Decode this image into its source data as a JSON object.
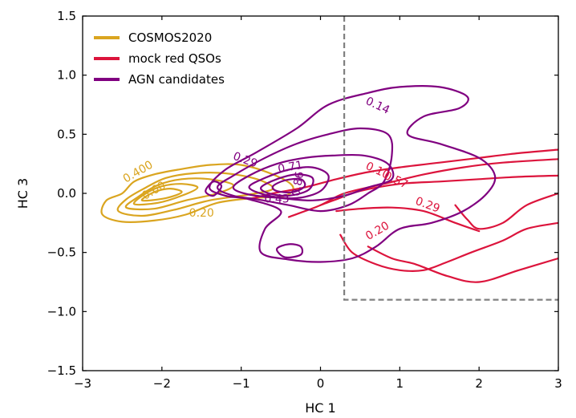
{
  "chart_data": {
    "type": "contour",
    "xlabel": "HC 1",
    "ylabel": "HC 3",
    "xlim": [
      -3,
      3
    ],
    "ylim": [
      -1.5,
      1.5
    ],
    "xticks": [
      -3,
      -2,
      -1,
      0,
      1,
      2,
      3
    ],
    "yticks": [
      -1.5,
      -1.0,
      -0.5,
      0.0,
      0.5,
      1.0,
      1.5
    ],
    "xtick_labels": [
      "−3",
      "−2",
      "−1",
      "0",
      "1",
      "2",
      "3"
    ],
    "ytick_labels": [
      "−1.5",
      "−1.0",
      "−0.5",
      "0.0",
      "0.5",
      "1.0",
      "1.5"
    ],
    "grid": false,
    "legend_position": "top-left",
    "selection_box": {
      "color": "#808080",
      "style": "dashed",
      "x_min": 0.3,
      "y_max": -0.9,
      "points": [
        [
          0.3,
          1.5
        ],
        [
          0.3,
          -0.9
        ],
        [
          3.0,
          -0.9
        ]
      ]
    },
    "series": [
      {
        "name": "COSMOS2020",
        "color": "#DAA520",
        "contours": [
          {
            "points": [
              [
                -2.75,
                -0.18
              ],
              [
                -2.7,
                -0.06
              ],
              [
                -2.5,
                0.0
              ],
              [
                -2.35,
                0.1
              ],
              [
                -2.1,
                0.16
              ],
              [
                -1.8,
                0.2
              ],
              [
                -1.4,
                0.24
              ],
              [
                -1.0,
                0.24
              ],
              [
                -0.6,
                0.16
              ],
              [
                -0.35,
                0.06
              ],
              [
                -0.45,
                -0.02
              ],
              [
                -0.85,
                -0.04
              ],
              [
                -1.3,
                -0.08
              ],
              [
                -1.7,
                -0.18
              ],
              [
                -2.1,
                -0.23
              ],
              [
                -2.5,
                -0.24
              ],
              [
                -2.75,
                -0.18
              ]
            ]
          },
          {
            "points": [
              [
                -2.55,
                -0.15
              ],
              [
                -2.45,
                -0.05
              ],
              [
                -2.2,
                0.05
              ],
              [
                -1.95,
                0.13
              ],
              [
                -1.6,
                0.17
              ],
              [
                -1.2,
                0.17
              ],
              [
                -0.8,
                0.12
              ],
              [
                -0.6,
                0.04
              ],
              [
                -0.9,
                -0.01
              ],
              [
                -1.4,
                -0.06
              ],
              [
                -1.85,
                -0.14
              ],
              [
                -2.25,
                -0.19
              ],
              [
                -2.55,
                -0.15
              ]
            ]
          },
          {
            "points": [
              [
                -2.45,
                -0.12
              ],
              [
                -2.3,
                -0.03
              ],
              [
                -2.05,
                0.07
              ],
              [
                -1.75,
                0.12
              ],
              [
                -1.4,
                0.12
              ],
              [
                -1.1,
                0.07
              ],
              [
                -1.3,
                0.0
              ],
              [
                -1.7,
                -0.06
              ],
              [
                -2.1,
                -0.13
              ],
              [
                -2.45,
                -0.12
              ]
            ]
          },
          {
            "points": [
              [
                -2.35,
                -0.09
              ],
              [
                -2.2,
                0.0
              ],
              [
                -2.0,
                0.06
              ],
              [
                -1.75,
                0.08
              ],
              [
                -1.55,
                0.05
              ],
              [
                -1.75,
                -0.02
              ],
              [
                -2.05,
                -0.08
              ],
              [
                -2.35,
                -0.09
              ]
            ]
          },
          {
            "points": [
              [
                -2.25,
                -0.06
              ],
              [
                -2.1,
                0.01
              ],
              [
                -1.9,
                0.04
              ],
              [
                -1.75,
                0.01
              ],
              [
                -1.95,
                -0.04
              ],
              [
                -2.25,
                -0.06
              ]
            ]
          }
        ],
        "labels": [
          {
            "text": "0.400",
            "x": -2.3,
            "y": 0.18,
            "angle": -30
          },
          {
            "text": "0.20",
            "x": -1.5,
            "y": -0.17,
            "angle": 0
          },
          {
            "text": "0.60",
            "x": -2.1,
            "y": 0.02,
            "angle": -30
          }
        ]
      },
      {
        "name": "mock red QSOs",
        "color": "#DC143C",
        "contours": [
          {
            "points": [
              [
                -0.9,
                -0.05
              ],
              [
                -0.6,
                0.0
              ],
              [
                -0.2,
                0.05
              ],
              [
                0.2,
                0.12
              ],
              [
                0.6,
                0.18
              ],
              [
                1.0,
                0.22
              ],
              [
                1.5,
                0.26
              ],
              [
                2.0,
                0.3
              ],
              [
                2.5,
                0.34
              ],
              [
                3.0,
                0.37
              ]
            ]
          },
          {
            "points": [
              [
                -0.4,
                -0.2
              ],
              [
                0.0,
                -0.1
              ],
              [
                0.3,
                0.0
              ],
              [
                0.8,
                0.08
              ],
              [
                1.3,
                0.16
              ],
              [
                1.8,
                0.22
              ],
              [
                2.3,
                0.26
              ],
              [
                3.0,
                0.29
              ]
            ]
          },
          {
            "points": [
              [
                0.0,
                -0.1
              ],
              [
                0.2,
                -0.05
              ],
              [
                0.5,
                0.02
              ],
              [
                1.0,
                0.08
              ],
              [
                1.5,
                0.1
              ],
              [
                2.0,
                0.12
              ],
              [
                2.5,
                0.14
              ],
              [
                3.0,
                0.15
              ]
            ]
          },
          {
            "points": [
              [
                0.2,
                -0.15
              ],
              [
                0.5,
                -0.13
              ],
              [
                0.9,
                -0.12
              ],
              [
                1.3,
                -0.15
              ],
              [
                1.7,
                -0.25
              ],
              [
                2.0,
                -0.32
              ]
            ]
          },
          {
            "points": [
              [
                0.25,
                -0.35
              ],
              [
                0.4,
                -0.5
              ],
              [
                0.7,
                -0.6
              ],
              [
                1.0,
                -0.65
              ],
              [
                1.3,
                -0.65
              ],
              [
                1.6,
                -0.58
              ],
              [
                1.9,
                -0.5
              ],
              [
                2.3,
                -0.4
              ],
              [
                2.6,
                -0.3
              ],
              [
                3.0,
                -0.25
              ]
            ]
          },
          {
            "points": [
              [
                0.6,
                -0.45
              ],
              [
                0.9,
                -0.55
              ],
              [
                1.2,
                -0.6
              ],
              [
                1.6,
                -0.7
              ],
              [
                2.0,
                -0.75
              ],
              [
                2.5,
                -0.65
              ],
              [
                3.0,
                -0.55
              ]
            ]
          },
          {
            "points": [
              [
                1.7,
                -0.1
              ],
              [
                1.85,
                -0.22
              ],
              [
                2.0,
                -0.3
              ],
              [
                2.3,
                -0.25
              ],
              [
                2.6,
                -0.1
              ],
              [
                3.0,
                0.0
              ]
            ]
          }
        ],
        "labels": [
          {
            "text": "0.29",
            "x": 1.35,
            "y": -0.1,
            "angle": 20
          },
          {
            "text": "0.20",
            "x": 0.72,
            "y": -0.32,
            "angle": -30
          },
          {
            "text": "0.10",
            "x": 0.72,
            "y": 0.19,
            "angle": 25
          },
          {
            "text": "0.57",
            "x": 0.95,
            "y": 0.11,
            "angle": 25
          }
        ]
      },
      {
        "name": "AGN candidates",
        "color": "#800080",
        "contours": [
          {
            "points": [
              [
                -1.4,
                0.05
              ],
              [
                -1.2,
                0.2
              ],
              [
                -0.8,
                0.35
              ],
              [
                -0.3,
                0.55
              ],
              [
                0.1,
                0.75
              ],
              [
                0.6,
                0.85
              ],
              [
                1.0,
                0.9
              ],
              [
                1.5,
                0.9
              ],
              [
                1.85,
                0.82
              ],
              [
                1.75,
                0.72
              ],
              [
                1.3,
                0.65
              ],
              [
                1.1,
                0.5
              ],
              [
                1.5,
                0.42
              ],
              [
                2.0,
                0.3
              ],
              [
                2.2,
                0.15
              ],
              [
                2.1,
                0.0
              ],
              [
                1.8,
                -0.15
              ],
              [
                1.4,
                -0.25
              ],
              [
                1.0,
                -0.3
              ],
              [
                0.7,
                -0.45
              ],
              [
                0.4,
                -0.55
              ],
              [
                0.0,
                -0.58
              ],
              [
                -0.4,
                -0.56
              ],
              [
                -0.75,
                -0.5
              ],
              [
                -0.7,
                -0.3
              ],
              [
                -0.5,
                -0.15
              ],
              [
                -0.9,
                -0.05
              ],
              [
                -1.2,
                -0.02
              ],
              [
                -1.4,
                0.05
              ]
            ]
          },
          {
            "points": [
              [
                -1.3,
                0.05
              ],
              [
                -1.1,
                0.15
              ],
              [
                -0.7,
                0.3
              ],
              [
                -0.3,
                0.42
              ],
              [
                0.1,
                0.5
              ],
              [
                0.5,
                0.55
              ],
              [
                0.85,
                0.5
              ],
              [
                0.9,
                0.32
              ],
              [
                0.8,
                0.1
              ],
              [
                0.6,
                0.0
              ],
              [
                0.35,
                -0.1
              ],
              [
                0.0,
                -0.15
              ],
              [
                -0.4,
                -0.1
              ],
              [
                -0.8,
                -0.05
              ],
              [
                -1.1,
                -0.02
              ],
              [
                -1.3,
                0.05
              ]
            ]
          },
          {
            "points": [
              [
                -1.1,
                0.05
              ],
              [
                -0.9,
                0.15
              ],
              [
                -0.55,
                0.25
              ],
              [
                -0.2,
                0.3
              ],
              [
                0.15,
                0.32
              ],
              [
                0.55,
                0.32
              ],
              [
                0.85,
                0.25
              ],
              [
                0.9,
                0.12
              ],
              [
                0.6,
                0.05
              ],
              [
                0.3,
                -0.02
              ],
              [
                -0.1,
                -0.06
              ],
              [
                -0.5,
                -0.04
              ],
              [
                -0.9,
                -0.01
              ],
              [
                -1.1,
                0.05
              ]
            ]
          },
          {
            "points": [
              [
                -0.9,
                0.05
              ],
              [
                -0.7,
                0.13
              ],
              [
                -0.4,
                0.2
              ],
              [
                -0.1,
                0.22
              ],
              [
                0.1,
                0.15
              ],
              [
                0.0,
                0.02
              ],
              [
                -0.3,
                -0.04
              ],
              [
                -0.65,
                -0.02
              ],
              [
                -0.9,
                0.05
              ]
            ]
          },
          {
            "points": [
              [
                -0.75,
                0.05
              ],
              [
                -0.55,
                0.12
              ],
              [
                -0.3,
                0.16
              ],
              [
                -0.1,
                0.13
              ],
              [
                -0.15,
                0.03
              ],
              [
                -0.4,
                -0.02
              ],
              [
                -0.65,
                0.0
              ],
              [
                -0.75,
                0.05
              ]
            ]
          },
          {
            "points": [
              [
                -0.6,
                0.06
              ],
              [
                -0.45,
                0.11
              ],
              [
                -0.25,
                0.12
              ],
              [
                -0.2,
                0.06
              ],
              [
                -0.35,
                0.01
              ],
              [
                -0.55,
                0.02
              ],
              [
                -0.6,
                0.06
              ]
            ]
          },
          {
            "points": [
              [
                -0.55,
                -0.47
              ],
              [
                -0.4,
                -0.43
              ],
              [
                -0.25,
                -0.45
              ],
              [
                -0.25,
                -0.52
              ],
              [
                -0.45,
                -0.54
              ],
              [
                -0.55,
                -0.47
              ]
            ]
          },
          {
            "points": [
              [
                -1.45,
                0.02
              ],
              [
                -1.35,
                0.1
              ],
              [
                -1.25,
                0.06
              ],
              [
                -1.35,
                -0.02
              ],
              [
                -1.45,
                0.02
              ]
            ]
          }
        ],
        "labels": [
          {
            "text": "0.14",
            "x": 0.72,
            "y": 0.74,
            "angle": 25
          },
          {
            "text": "0.29",
            "x": -0.95,
            "y": 0.28,
            "angle": 20
          },
          {
            "text": "0.71",
            "x": -0.38,
            "y": 0.22,
            "angle": -10
          },
          {
            "text": "0.43",
            "x": -0.55,
            "y": -0.05,
            "angle": 0
          },
          {
            "text": "0.86",
            "x": -0.28,
            "y": 0.08,
            "angle": -80
          }
        ]
      }
    ]
  }
}
